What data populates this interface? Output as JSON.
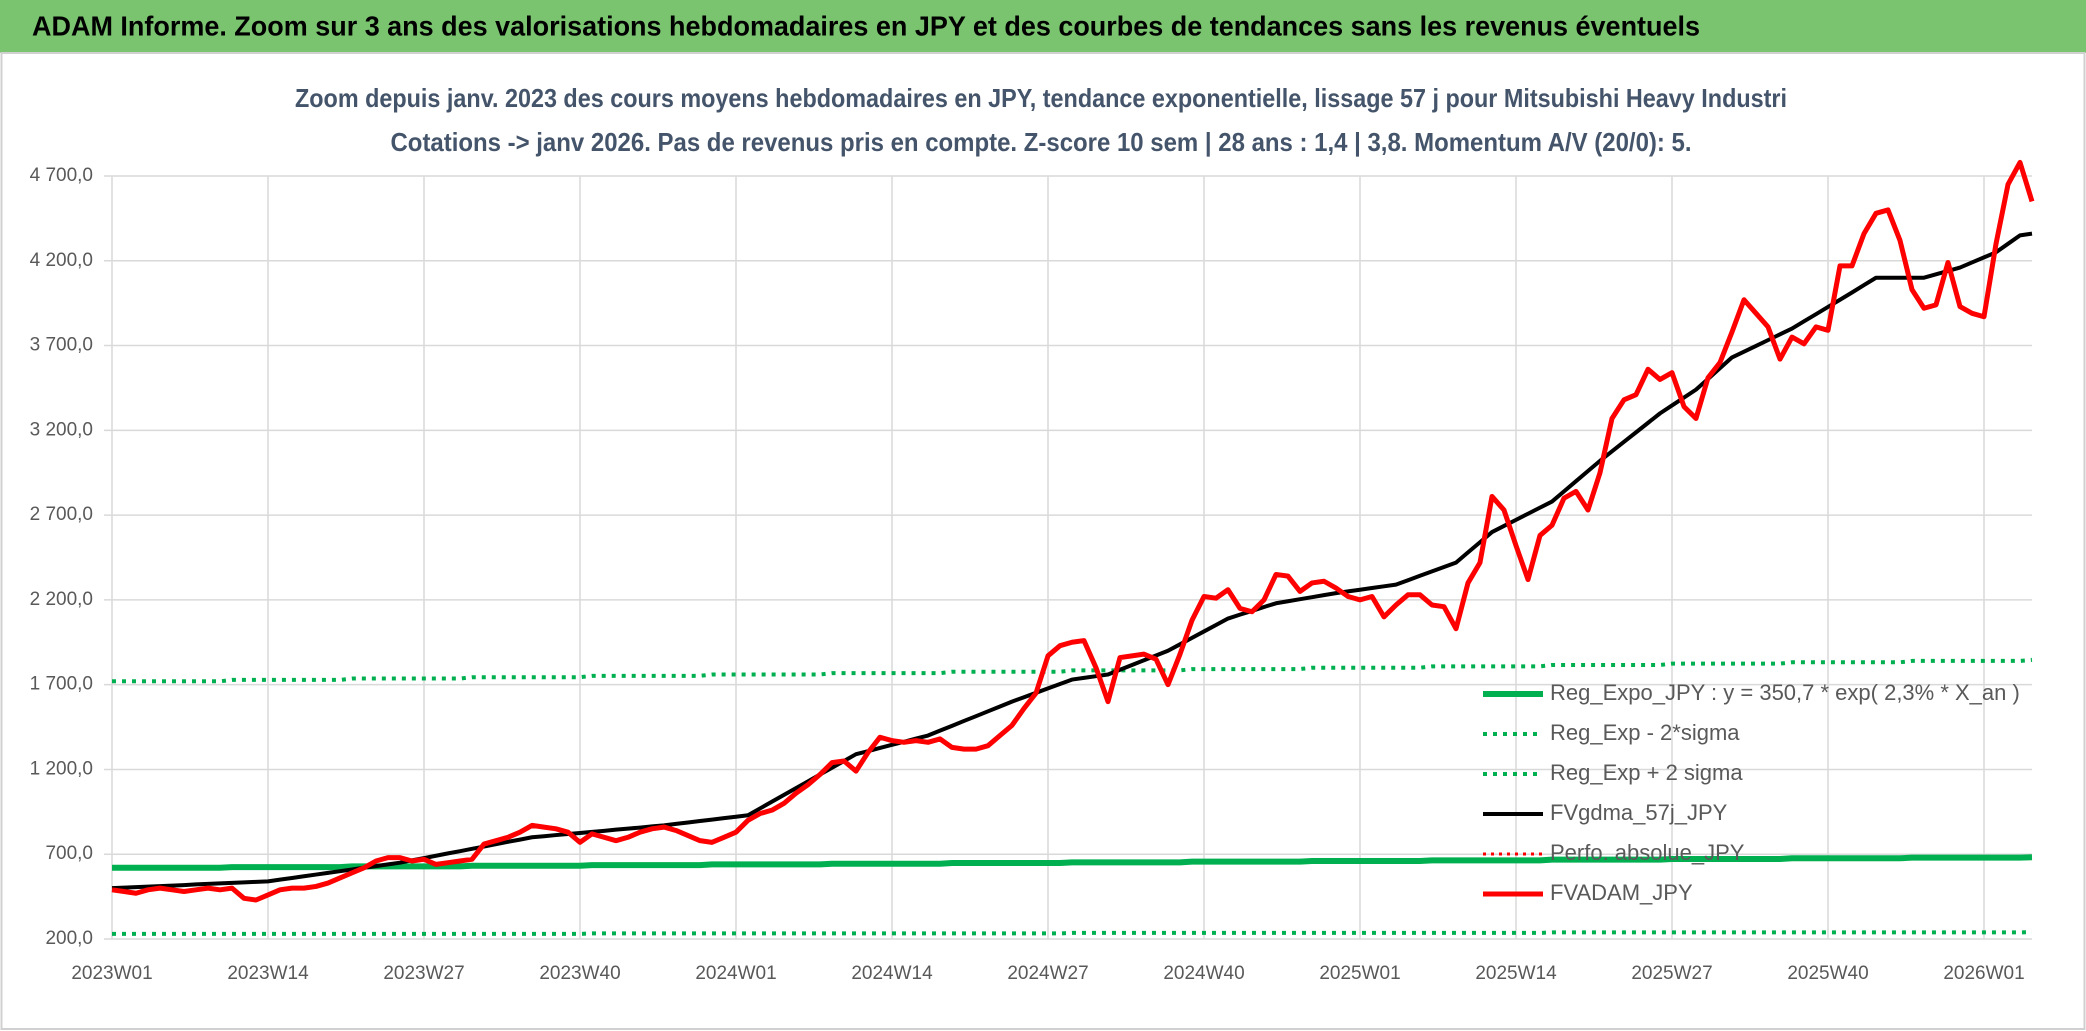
{
  "header": {
    "title": "ADAM Informe. Zoom sur 3 ans des valorisations hebdomadaires en JPY et des courbes de tendances sans les revenus éventuels"
  },
  "chart_data": {
    "type": "line",
    "title": "Zoom depuis janv. 2023 des cours moyens hebdomadaires en JPY, tendance exponentielle, lissage 57 j pour Mitsubishi Heavy Industri",
    "subtitle": "Cotations -> janv 2026. Pas de revenus pris en compte. Z-score 10 sem | 28 ans : 1,4 | 3,8. Momentum A/V (20/0): 5.",
    "ylim": [
      200,
      4700
    ],
    "yticks": [
      {
        "value": 200,
        "label": "200,0"
      },
      {
        "value": 700,
        "label": "700,0"
      },
      {
        "value": 1200,
        "label": "1 200,0"
      },
      {
        "value": 1700,
        "label": "1 700,0"
      },
      {
        "value": 2200,
        "label": "2 200,0"
      },
      {
        "value": 2700,
        "label": "2 700,0"
      },
      {
        "value": 3200,
        "label": "3 200,0"
      },
      {
        "value": 3700,
        "label": "3 700,0"
      },
      {
        "value": 4200,
        "label": "4 200,0"
      },
      {
        "value": 4700,
        "label": "4 700,0"
      }
    ],
    "grid": true,
    "x_grid": true,
    "legend": "lower-right",
    "categories": [
      "2023W01",
      null,
      null,
      null,
      null,
      null,
      null,
      null,
      null,
      null,
      null,
      null,
      null,
      "2023W14",
      null,
      null,
      null,
      null,
      null,
      null,
      null,
      null,
      null,
      null,
      null,
      null,
      "2023W27",
      null,
      null,
      null,
      null,
      null,
      null,
      null,
      null,
      null,
      null,
      null,
      null,
      "2023W40",
      null,
      null,
      null,
      null,
      null,
      null,
      null,
      null,
      null,
      null,
      null,
      null,
      "2024W01",
      null,
      null,
      null,
      null,
      null,
      null,
      null,
      null,
      null,
      null,
      null,
      null,
      "2024W14",
      null,
      null,
      null,
      null,
      null,
      null,
      null,
      null,
      null,
      null,
      null,
      null,
      "2024W27",
      null,
      null,
      null,
      null,
      null,
      null,
      null,
      null,
      null,
      null,
      null,
      null,
      "2024W40",
      null,
      null,
      null,
      null,
      null,
      null,
      null,
      null,
      null,
      null,
      null,
      null,
      "2025W01",
      null,
      null,
      null,
      null,
      null,
      null,
      null,
      null,
      null,
      null,
      null,
      null,
      "2025W14",
      null,
      null,
      null,
      null,
      null,
      null,
      null,
      null,
      null,
      null,
      null,
      null,
      "2025W27",
      null,
      null,
      null,
      null,
      null,
      null,
      null,
      null,
      null,
      null,
      null,
      null,
      "2025W40",
      null,
      null,
      null,
      null,
      null,
      null,
      null,
      null,
      null,
      null,
      null,
      null,
      "2026W01",
      null,
      null,
      null,
      null
    ],
    "series": [
      {
        "name": "Reg_Expo_JPY : y = 350,7 * exp( 2,3% *  X_an )",
        "color": "#00b050",
        "width": 6,
        "dash": "solid",
        "values": [
          620,
          620,
          620,
          620,
          620,
          620,
          620,
          620,
          620,
          620,
          624,
          624,
          624,
          624,
          624,
          624,
          624,
          624,
          624,
          624,
          628,
          628,
          628,
          628,
          628,
          628,
          628,
          628,
          628,
          628,
          632,
          632,
          632,
          632,
          632,
          632,
          632,
          632,
          632,
          632,
          636,
          636,
          636,
          636,
          636,
          636,
          636,
          636,
          636,
          636,
          640,
          640,
          640,
          640,
          640,
          640,
          640,
          640,
          640,
          640,
          644,
          644,
          644,
          644,
          644,
          644,
          644,
          644,
          644,
          644,
          648,
          648,
          648,
          648,
          648,
          648,
          648,
          648,
          648,
          648,
          652,
          652,
          652,
          652,
          652,
          652,
          652,
          652,
          652,
          652,
          656,
          656,
          656,
          656,
          656,
          656,
          656,
          656,
          656,
          656,
          660,
          660,
          660,
          660,
          660,
          660,
          660,
          660,
          660,
          660,
          664,
          664,
          664,
          664,
          664,
          664,
          664,
          664,
          664,
          664,
          668,
          668,
          668,
          668,
          668,
          668,
          668,
          668,
          668,
          668,
          672,
          672,
          672,
          672,
          672,
          672,
          672,
          672,
          672,
          672,
          676,
          676,
          676,
          676,
          676,
          676,
          676,
          676,
          676,
          676,
          680,
          680,
          680,
          680,
          680,
          680,
          680,
          680,
          680,
          680,
          682
        ]
      },
      {
        "name": "Reg_Exp - 2*sigma",
        "color": "#00b050",
        "width": 4,
        "dash": "dotted",
        "values": [
          230,
          230,
          230,
          230,
          230,
          230,
          230,
          230,
          230,
          230,
          230,
          230,
          230,
          230,
          230,
          230,
          230,
          230,
          230,
          230,
          230,
          230,
          230,
          230,
          230,
          230,
          230,
          230,
          230,
          230,
          230,
          230,
          230,
          230,
          230,
          230,
          230,
          230,
          230,
          230,
          233,
          233,
          233,
          233,
          233,
          233,
          233,
          233,
          233,
          233,
          233,
          233,
          233,
          233,
          233,
          233,
          233,
          233,
          233,
          233,
          233,
          233,
          233,
          233,
          233,
          233,
          233,
          233,
          233,
          233,
          233,
          233,
          233,
          233,
          233,
          233,
          233,
          233,
          233,
          233,
          236,
          236,
          236,
          236,
          236,
          236,
          236,
          236,
          236,
          236,
          236,
          236,
          236,
          236,
          236,
          236,
          236,
          236,
          236,
          236,
          236,
          236,
          236,
          236,
          236,
          236,
          236,
          236,
          236,
          236,
          236,
          236,
          236,
          236,
          236,
          236,
          236,
          236,
          236,
          236,
          239,
          239,
          239,
          239,
          239,
          239,
          239,
          239,
          239,
          239,
          239,
          239,
          239,
          239,
          239,
          239,
          239,
          239,
          239,
          239,
          239,
          239,
          239,
          239,
          239,
          239,
          239,
          239,
          239,
          239,
          239,
          239,
          239,
          239,
          239,
          239,
          239,
          239,
          239,
          239,
          240
        ]
      },
      {
        "name": "Reg_Exp + 2 sigma",
        "color": "#00b050",
        "width": 4,
        "dash": "dotted",
        "values": [
          1720,
          1720,
          1720,
          1720,
          1720,
          1720,
          1720,
          1720,
          1720,
          1720,
          1728,
          1728,
          1728,
          1728,
          1728,
          1728,
          1728,
          1728,
          1728,
          1728,
          1736,
          1736,
          1736,
          1736,
          1736,
          1736,
          1736,
          1736,
          1736,
          1736,
          1744,
          1744,
          1744,
          1744,
          1744,
          1744,
          1744,
          1744,
          1744,
          1744,
          1752,
          1752,
          1752,
          1752,
          1752,
          1752,
          1752,
          1752,
          1752,
          1752,
          1760,
          1760,
          1760,
          1760,
          1760,
          1760,
          1760,
          1760,
          1760,
          1760,
          1768,
          1768,
          1768,
          1768,
          1768,
          1768,
          1768,
          1768,
          1768,
          1768,
          1776,
          1776,
          1776,
          1776,
          1776,
          1776,
          1776,
          1776,
          1776,
          1776,
          1784,
          1784,
          1784,
          1784,
          1784,
          1784,
          1784,
          1784,
          1784,
          1784,
          1792,
          1792,
          1792,
          1792,
          1792,
          1792,
          1792,
          1792,
          1792,
          1792,
          1800,
          1800,
          1800,
          1800,
          1800,
          1800,
          1800,
          1800,
          1800,
          1800,
          1808,
          1808,
          1808,
          1808,
          1808,
          1808,
          1808,
          1808,
          1808,
          1808,
          1816,
          1816,
          1816,
          1816,
          1816,
          1816,
          1816,
          1816,
          1816,
          1816,
          1824,
          1824,
          1824,
          1824,
          1824,
          1824,
          1824,
          1824,
          1824,
          1824,
          1832,
          1832,
          1832,
          1832,
          1832,
          1832,
          1832,
          1832,
          1832,
          1832,
          1840,
          1840,
          1840,
          1840,
          1840,
          1840,
          1840,
          1840,
          1840,
          1840,
          1846
        ]
      },
      {
        "name": "FVgdma_57j_JPY",
        "color": "#000000",
        "width": 4,
        "dash": "solid",
        "values": [
          500,
          503,
          506,
          509,
          512,
          515,
          518,
          522,
          525,
          528,
          531,
          534,
          537,
          540,
          550,
          560,
          570,
          580,
          590,
          600,
          610,
          620,
          630,
          640,
          650,
          664,
          677,
          691,
          705,
          718,
          732,
          745,
          759,
          773,
          786,
          800,
          806,
          813,
          819,
          825,
          832,
          838,
          845,
          851,
          857,
          864,
          870,
          879,
          887,
          896,
          904,
          913,
          921,
          930,
          970,
          1010,
          1050,
          1090,
          1130,
          1170,
          1210,
          1250,
          1290,
          1308,
          1327,
          1345,
          1363,
          1382,
          1400,
          1429,
          1457,
          1486,
          1514,
          1543,
          1571,
          1600,
          1626,
          1652,
          1678,
          1704,
          1730,
          1740,
          1750,
          1760,
          1788,
          1816,
          1844,
          1872,
          1900,
          1938,
          1976,
          2014,
          2052,
          2090,
          2113,
          2135,
          2158,
          2180,
          2192,
          2204,
          2216,
          2228,
          2240,
          2250,
          2260,
          2270,
          2280,
          2290,
          2316,
          2342,
          2368,
          2394,
          2420,
          2480,
          2540,
          2600,
          2636,
          2672,
          2708,
          2744,
          2780,
          2840,
          2900,
          2960,
          3020,
          3076,
          3132,
          3188,
          3244,
          3300,
          3347,
          3393,
          3440,
          3503,
          3567,
          3630,
          3664,
          3698,
          3732,
          3766,
          3800,
          3843,
          3885,
          3928,
          3970,
          4013,
          4057,
          4100,
          4100,
          4100,
          4100,
          4100,
          4120,
          4140,
          4160,
          4190,
          4220,
          4250,
          4300,
          4350,
          4360
        ]
      },
      {
        "name": "Perfo. absolue_JPY",
        "color": "#ff0000",
        "width": 3,
        "dash": "dotted",
        "values": [
          null,
          null,
          null,
          null,
          null,
          null,
          null,
          null,
          null,
          null,
          null,
          null,
          null,
          null,
          null,
          null,
          null,
          null,
          null,
          null,
          null,
          null,
          null,
          null,
          null,
          null,
          null,
          null,
          null,
          null,
          null,
          null,
          null,
          null,
          null,
          null,
          null,
          null,
          null,
          null,
          null,
          null,
          null,
          null,
          null,
          null,
          null,
          null,
          null,
          null,
          null,
          null,
          null,
          null,
          null,
          null,
          null,
          null,
          null,
          null,
          null,
          null,
          null,
          null,
          null,
          null,
          null,
          null,
          null,
          null,
          null,
          null,
          null,
          null,
          null,
          null,
          null,
          null,
          null,
          null,
          null,
          null,
          null,
          null,
          null,
          null,
          null,
          null,
          null,
          null,
          null,
          null,
          null,
          null,
          null,
          null,
          null,
          null,
          null,
          null,
          null,
          null,
          null,
          null,
          null,
          null,
          null,
          null,
          null,
          null,
          null,
          null,
          null,
          null,
          null,
          null,
          null,
          null,
          null,
          null,
          null,
          null,
          null,
          null,
          null,
          null,
          null,
          null,
          null,
          null,
          null,
          null,
          null,
          null,
          null,
          null,
          null,
          null,
          null,
          null,
          null,
          null,
          null,
          null,
          null,
          null,
          null,
          null,
          null,
          null,
          null,
          null,
          null,
          null,
          null,
          null,
          null,
          null,
          null,
          null,
          null
        ]
      },
      {
        "name": "FVADAM_JPY",
        "color": "#ff0000",
        "width": 5,
        "dash": "solid",
        "values": [
          490,
          480,
          470,
          490,
          500,
          490,
          480,
          490,
          500,
          490,
          500,
          440,
          430,
          460,
          490,
          500,
          500,
          510,
          530,
          560,
          590,
          620,
          660,
          680,
          680,
          660,
          670,
          640,
          650,
          660,
          670,
          760,
          780,
          800,
          830,
          870,
          860,
          850,
          830,
          770,
          820,
          800,
          780,
          800,
          830,
          850,
          860,
          840,
          810,
          780,
          770,
          800,
          830,
          900,
          940,
          960,
          1000,
          1060,
          1110,
          1170,
          1240,
          1250,
          1190,
          1300,
          1390,
          1370,
          1360,
          1370,
          1360,
          1380,
          1330,
          1320,
          1320,
          1340,
          1400,
          1460,
          1560,
          1650,
          1870,
          1930,
          1950,
          1960,
          1800,
          1600,
          1860,
          1870,
          1880,
          1850,
          1700,
          1880,
          2080,
          2220,
          2210,
          2260,
          2150,
          2130,
          2200,
          2350,
          2340,
          2250,
          2300,
          2310,
          2270,
          2220,
          2200,
          2220,
          2100,
          2170,
          2230,
          2230,
          2170,
          2160,
          2030,
          2300,
          2420,
          2810,
          2730,
          2520,
          2320,
          2580,
          2640,
          2800,
          2840,
          2730,
          2950,
          3270,
          3380,
          3410,
          3560,
          3500,
          3540,
          3340,
          3270,
          3510,
          3600,
          3780,
          3970,
          3890,
          3810,
          3620,
          3750,
          3710,
          3810,
          3790,
          4170,
          4170,
          4360,
          4480,
          4500,
          4320,
          4030,
          3920,
          3940,
          4190,
          3930,
          3890,
          3870,
          4300,
          4650,
          4780,
          4550
        ]
      }
    ]
  }
}
